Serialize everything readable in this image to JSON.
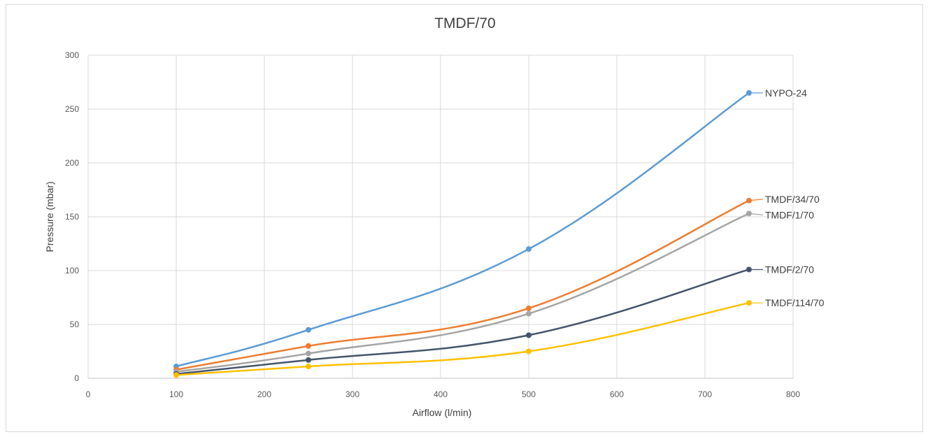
{
  "chart_data": {
    "type": "line",
    "title": "TMDF/70",
    "xlabel": "Airflow (l/min)",
    "ylabel": "Pressure (mbar)",
    "xlim": [
      0,
      800
    ],
    "ylim": [
      0,
      300
    ],
    "xticks": [
      "0",
      "100",
      "200",
      "300",
      "400",
      "500",
      "600",
      "700",
      "800"
    ],
    "yticks": [
      "0",
      "50",
      "100",
      "150",
      "200",
      "250",
      "300"
    ],
    "grid": true,
    "legend": "direct labels at line ends (right)",
    "x": [
      100,
      250,
      500,
      750
    ],
    "series": [
      {
        "name": "NYPO-24",
        "color": "#5b9bd5",
        "values": [
          11,
          45,
          120,
          265
        ]
      },
      {
        "name": "TMDF/34/70",
        "color": "#ed7d31",
        "values": [
          8,
          30,
          65,
          165
        ]
      },
      {
        "name": "TMDF/1/70",
        "color": "#a5a5a5",
        "values": [
          6,
          23,
          60,
          153
        ]
      },
      {
        "name": "TMDF/2/70",
        "color": "#44546a",
        "values": [
          4,
          17,
          40,
          101
        ]
      },
      {
        "name": "TMDF/114/70",
        "color": "#ffc000",
        "values": [
          3,
          11,
          25,
          70
        ]
      }
    ]
  }
}
